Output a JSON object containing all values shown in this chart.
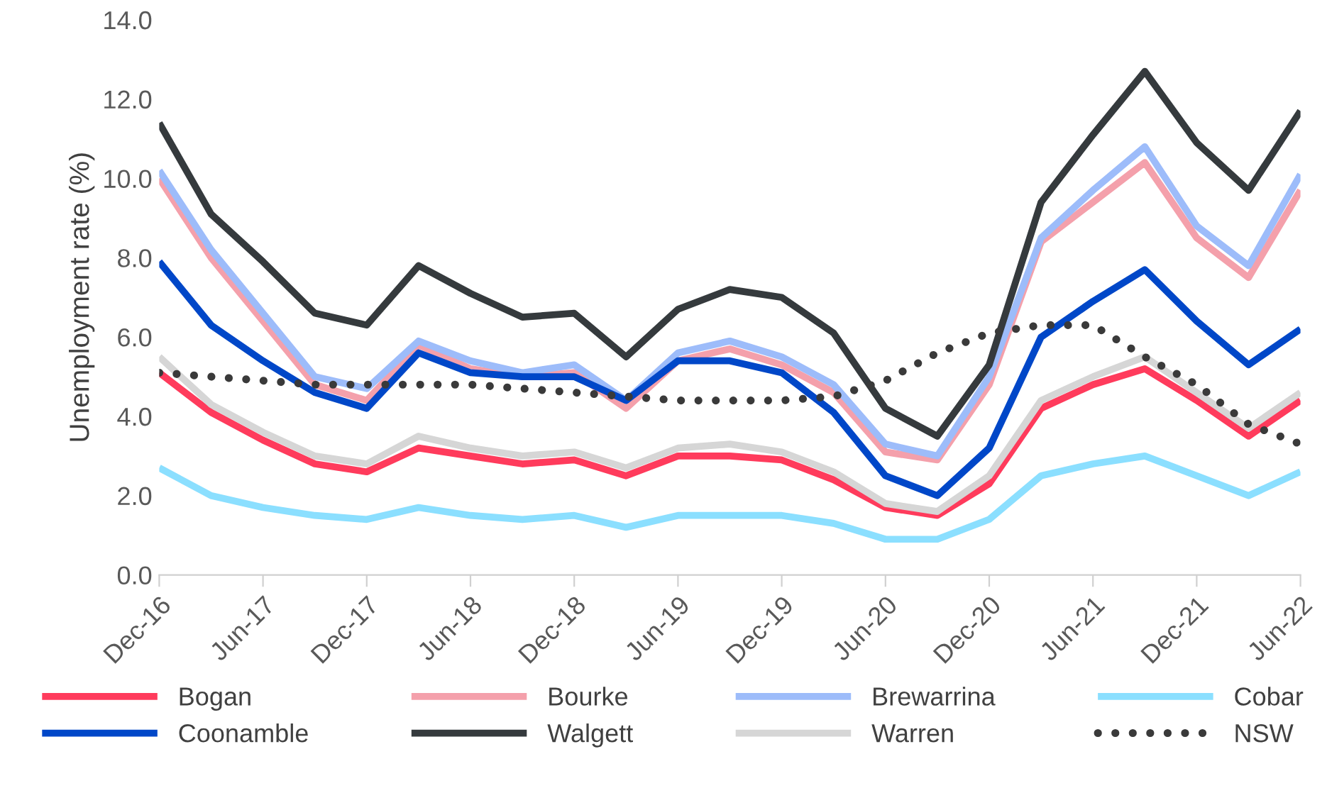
{
  "chart_data": {
    "type": "line",
    "ylabel": "Unemployment rate (%)",
    "categories": [
      "Dec-16",
      null,
      "Jun-17",
      null,
      "Dec-17",
      null,
      "Jun-18",
      null,
      "Dec-18",
      null,
      "Jun-19",
      null,
      "Dec-19",
      null,
      "Jun-20",
      null,
      "Dec-20",
      null,
      "Jun-21",
      null,
      "Dec-21",
      null,
      "Jun-22"
    ],
    "ylim": [
      0,
      14
    ],
    "yticks": [
      {
        "value": 0,
        "label": "0.0"
      },
      {
        "value": 2,
        "label": "2.0"
      },
      {
        "value": 4,
        "label": "4.0"
      },
      {
        "value": 6,
        "label": "6.0"
      },
      {
        "value": 8,
        "label": "8.0"
      },
      {
        "value": 10,
        "label": "10.0"
      },
      {
        "value": 12,
        "label": "12.0"
      },
      {
        "value": 14,
        "label": "14.0"
      }
    ],
    "grid": false,
    "legend": "bottom",
    "marker": "none",
    "series": [
      {
        "name": "Bogan",
        "color": "#ff3b5c",
        "values": [
          5.1,
          4.1,
          3.4,
          2.8,
          2.6,
          3.2,
          3.0,
          2.8,
          2.9,
          2.5,
          3.0,
          3.0,
          2.9,
          2.4,
          1.7,
          1.5,
          2.3,
          4.2,
          4.8,
          5.2,
          4.4,
          3.5,
          4.4
        ]
      },
      {
        "name": "Bourke",
        "color": "#f4a0ab",
        "values": [
          10.0,
          8.0,
          6.4,
          4.8,
          4.4,
          5.8,
          5.2,
          5.0,
          5.1,
          4.2,
          5.4,
          5.7,
          5.3,
          4.6,
          3.1,
          2.9,
          4.8,
          8.4,
          9.4,
          10.4,
          8.5,
          7.5,
          9.7
        ]
      },
      {
        "name": "Brewarrina",
        "color": "#9dbcfa",
        "values": [
          10.2,
          8.2,
          6.6,
          5.0,
          4.7,
          5.9,
          5.4,
          5.1,
          5.3,
          4.4,
          5.6,
          5.9,
          5.5,
          4.8,
          3.3,
          3.0,
          5.0,
          8.5,
          9.7,
          10.8,
          8.8,
          7.8,
          10.1
        ]
      },
      {
        "name": "Cobar",
        "color": "#8bdfff",
        "values": [
          2.7,
          2.0,
          1.7,
          1.5,
          1.4,
          1.7,
          1.5,
          1.4,
          1.5,
          1.2,
          1.5,
          1.5,
          1.5,
          1.3,
          0.9,
          0.9,
          1.4,
          2.5,
          2.8,
          3.0,
          2.5,
          2.0,
          2.6
        ]
      },
      {
        "name": "Coonamble",
        "color": "#0047c8",
        "values": [
          7.9,
          6.3,
          5.4,
          4.6,
          4.2,
          5.6,
          5.1,
          5.0,
          5.0,
          4.4,
          5.4,
          5.4,
          5.1,
          4.1,
          2.5,
          2.0,
          3.2,
          6.0,
          6.9,
          7.7,
          6.4,
          5.3,
          6.2
        ]
      },
      {
        "name": "Walgett",
        "color": "#353a3d",
        "values": [
          11.4,
          9.1,
          7.9,
          6.6,
          6.3,
          7.8,
          7.1,
          6.5,
          6.6,
          5.5,
          6.7,
          7.2,
          7.0,
          6.1,
          4.2,
          3.5,
          5.3,
          9.4,
          11.1,
          12.7,
          10.9,
          9.7,
          11.7
        ]
      },
      {
        "name": "Warren",
        "color": "#d6d6d6",
        "values": [
          5.5,
          4.3,
          3.6,
          3.0,
          2.8,
          3.5,
          3.2,
          3.0,
          3.1,
          2.7,
          3.2,
          3.3,
          3.1,
          2.6,
          1.8,
          1.6,
          2.5,
          4.4,
          5.0,
          5.5,
          4.6,
          3.7,
          4.6
        ]
      },
      {
        "name": "NSW",
        "color": "#3a3a3a",
        "line_style": "dotted",
        "values": [
          5.1,
          5.0,
          4.9,
          4.8,
          4.8,
          4.8,
          4.8,
          4.7,
          4.6,
          4.5,
          4.4,
          4.4,
          4.4,
          4.5,
          4.9,
          5.6,
          6.1,
          6.3,
          6.3,
          5.5,
          4.8,
          3.8,
          3.3
        ]
      }
    ]
  }
}
